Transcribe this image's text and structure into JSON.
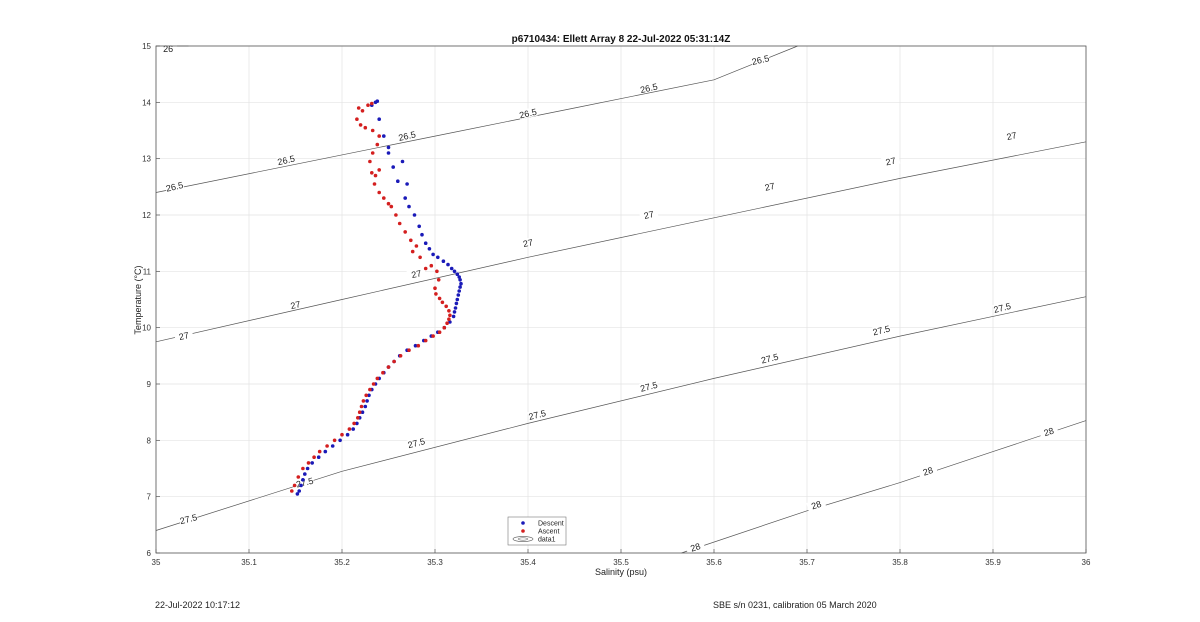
{
  "footer": {
    "left": "22-Jul-2022 10:17:12",
    "right": "SBE s/n 0231, calibration 05 March 2020"
  },
  "chart_data": {
    "type": "scatter",
    "title": "p6710434: Ellett Array 8 22-Jul-2022 05:31:14Z",
    "xlabel": "Salinity (psu)",
    "ylabel": "Temperature (°C)",
    "xlim": [
      35,
      36
    ],
    "ylim": [
      6,
      15
    ],
    "xticks": [
      "35",
      "35.1",
      "35.2",
      "35.3",
      "35.4",
      "35.5",
      "35.6",
      "35.7",
      "35.8",
      "35.9",
      "36"
    ],
    "yticks": [
      "6",
      "7",
      "8",
      "9",
      "10",
      "11",
      "12",
      "13",
      "14",
      "15"
    ],
    "grid": true,
    "legend_position": "bottom-center",
    "legend": [
      "Descent",
      "Ascent",
      "data1"
    ],
    "colors": {
      "descent": "#1a1ab8",
      "ascent": "#d41f1f",
      "contour": "#555555",
      "grid": "#e3e3e3"
    },
    "series": [
      {
        "name": "Descent",
        "color": "#1a1ab8",
        "x": [
          35.238,
          35.236,
          35.232,
          35.24,
          35.245,
          35.25,
          35.25,
          35.255,
          35.26,
          35.265,
          35.27,
          35.268,
          35.272,
          35.278,
          35.283,
          35.286,
          35.29,
          35.294,
          35.298,
          35.303,
          35.309,
          35.314,
          35.318,
          35.321,
          35.324,
          35.326,
          35.327,
          35.328,
          35.327,
          35.326,
          35.325,
          35.324,
          35.323,
          35.322,
          35.321,
          35.32,
          35.316,
          35.31,
          35.303,
          35.296,
          35.288,
          35.279,
          35.27,
          35.262,
          35.256,
          35.25,
          35.245,
          35.24,
          35.236,
          35.232,
          35.229,
          35.227,
          35.225,
          35.222,
          35.219,
          35.216,
          35.212,
          35.206,
          35.198,
          35.19,
          35.182,
          35.175,
          35.168,
          35.163,
          35.16,
          35.158,
          35.156,
          35.154,
          35.152
        ],
        "y": [
          14.02,
          14.0,
          13.95,
          13.7,
          13.4,
          13.2,
          13.1,
          12.85,
          12.6,
          12.95,
          12.55,
          12.3,
          12.15,
          12.0,
          11.8,
          11.65,
          11.5,
          11.4,
          11.3,
          11.25,
          11.18,
          11.12,
          11.05,
          11.0,
          10.95,
          10.9,
          10.85,
          10.78,
          10.72,
          10.65,
          10.58,
          10.5,
          10.43,
          10.35,
          10.28,
          10.2,
          10.1,
          10.0,
          9.92,
          9.85,
          9.77,
          9.68,
          9.6,
          9.5,
          9.4,
          9.3,
          9.2,
          9.1,
          9.0,
          8.9,
          8.8,
          8.7,
          8.6,
          8.5,
          8.4,
          8.3,
          8.2,
          8.1,
          8.0,
          7.9,
          7.8,
          7.7,
          7.6,
          7.5,
          7.4,
          7.3,
          7.2,
          7.1,
          7.05
        ]
      },
      {
        "name": "Ascent",
        "color": "#d41f1f",
        "x": [
          35.218,
          35.222,
          35.228,
          35.232,
          35.216,
          35.22,
          35.225,
          35.233,
          35.24,
          35.238,
          35.233,
          35.23,
          35.24,
          35.236,
          35.232,
          35.235,
          35.24,
          35.245,
          35.25,
          35.253,
          35.258,
          35.262,
          35.268,
          35.274,
          35.28,
          35.276,
          35.284,
          35.29,
          35.296,
          35.302,
          35.304,
          35.3,
          35.301,
          35.305,
          35.308,
          35.312,
          35.315,
          35.316,
          35.315,
          35.313,
          35.31,
          35.305,
          35.298,
          35.29,
          35.282,
          35.272,
          35.263,
          35.256,
          35.25,
          35.244,
          35.238,
          35.234,
          35.23,
          35.226,
          35.223,
          35.221,
          35.219,
          35.217,
          35.213,
          35.208,
          35.2,
          35.192,
          35.184,
          35.176,
          35.17,
          35.164,
          35.158,
          35.153,
          35.149,
          35.146
        ],
        "y": [
          13.9,
          13.85,
          13.95,
          13.98,
          13.7,
          13.6,
          13.55,
          13.5,
          13.4,
          13.25,
          13.1,
          12.95,
          12.8,
          12.7,
          12.75,
          12.55,
          12.4,
          12.3,
          12.2,
          12.15,
          12.0,
          11.85,
          11.7,
          11.55,
          11.45,
          11.35,
          11.25,
          11.05,
          11.1,
          11.0,
          10.85,
          10.7,
          10.6,
          10.52,
          10.45,
          10.38,
          10.3,
          10.22,
          10.15,
          10.08,
          10.0,
          9.92,
          9.85,
          9.77,
          9.68,
          9.6,
          9.5,
          9.4,
          9.3,
          9.2,
          9.1,
          9.0,
          8.9,
          8.8,
          8.7,
          8.6,
          8.5,
          8.4,
          8.3,
          8.2,
          8.1,
          8.0,
          7.9,
          7.8,
          7.7,
          7.6,
          7.5,
          7.35,
          7.2,
          7.1
        ]
      }
    ],
    "contours": [
      {
        "level": "26",
        "points": [
          [
            35.0,
            15.0
          ],
          [
            35.035,
            15.0
          ]
        ],
        "labels": [
          [
            35.013,
            14.95
          ]
        ]
      },
      {
        "level": "26.5",
        "points": [
          [
            35.0,
            12.4
          ],
          [
            35.15,
            12.9
          ],
          [
            35.3,
            13.4
          ],
          [
            35.45,
            13.9
          ],
          [
            35.6,
            14.4
          ],
          [
            35.69,
            15.0
          ]
        ],
        "labels": [
          [
            35.02,
            12.5
          ],
          [
            35.14,
            12.97
          ],
          [
            35.27,
            13.4
          ],
          [
            35.4,
            13.8
          ],
          [
            35.53,
            14.25
          ],
          [
            35.65,
            14.75
          ]
        ]
      },
      {
        "level": "27",
        "points": [
          [
            35.0,
            9.75
          ],
          [
            35.2,
            10.5
          ],
          [
            35.4,
            11.25
          ],
          [
            35.6,
            11.95
          ],
          [
            35.8,
            12.65
          ],
          [
            36.0,
            13.3
          ]
        ],
        "labels": [
          [
            35.03,
            9.85
          ],
          [
            35.15,
            10.4
          ],
          [
            35.28,
            10.95
          ],
          [
            35.4,
            11.5
          ],
          [
            35.53,
            12.0
          ],
          [
            35.66,
            12.5
          ],
          [
            35.79,
            12.95
          ],
          [
            35.92,
            13.4
          ]
        ]
      },
      {
        "level": "27.5",
        "points": [
          [
            35.0,
            6.4
          ],
          [
            35.2,
            7.45
          ],
          [
            35.4,
            8.3
          ],
          [
            35.6,
            9.1
          ],
          [
            35.8,
            9.85
          ],
          [
            36.0,
            10.55
          ]
        ],
        "labels": [
          [
            35.035,
            6.6
          ],
          [
            35.16,
            7.25
          ],
          [
            35.28,
            7.95
          ],
          [
            35.41,
            8.45
          ],
          [
            35.53,
            8.95
          ],
          [
            35.66,
            9.45
          ],
          [
            35.78,
            9.95
          ],
          [
            35.91,
            10.35
          ]
        ]
      },
      {
        "level": "28",
        "points": [
          [
            35.565,
            6.0
          ],
          [
            35.7,
            6.75
          ],
          [
            35.8,
            7.25
          ],
          [
            35.9,
            7.8
          ],
          [
            36.0,
            8.35
          ]
        ],
        "labels": [
          [
            35.58,
            6.1
          ],
          [
            35.71,
            6.85
          ],
          [
            35.83,
            7.45
          ],
          [
            35.96,
            8.15
          ]
        ]
      }
    ]
  }
}
